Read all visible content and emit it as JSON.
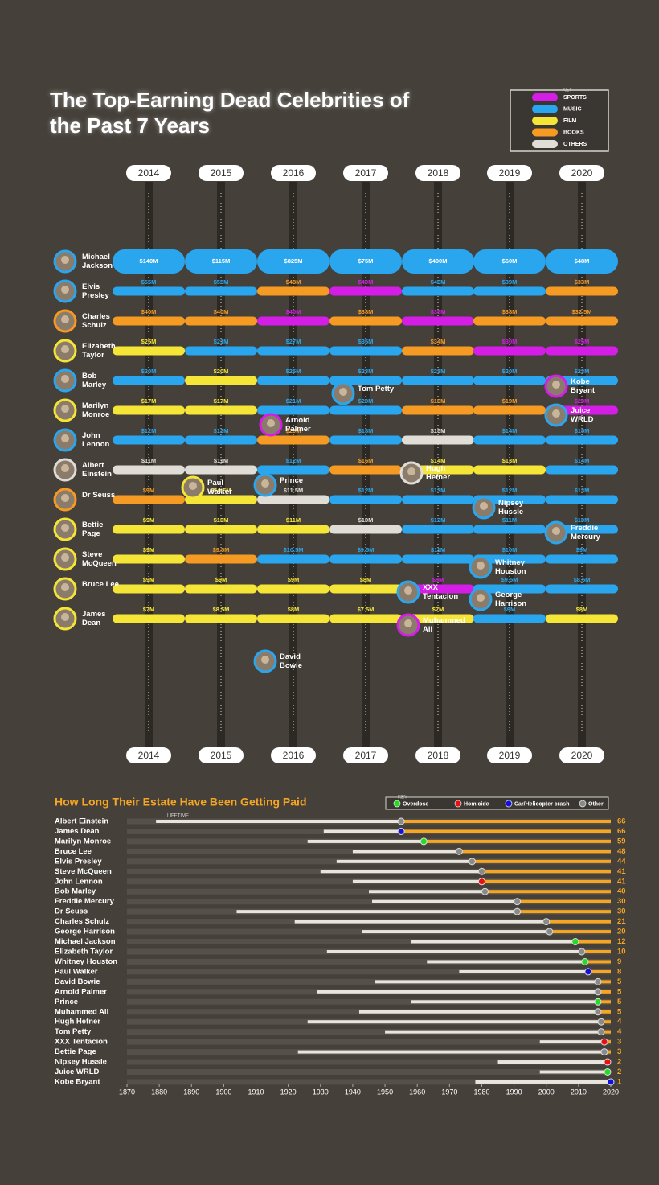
{
  "title": "The Top-Earning Dead Celebrities of the Past 7 Years",
  "chart_data": [
    {
      "type": "bump",
      "key": {
        "title": "KEY",
        "items": [
          {
            "label": "SPORTS",
            "color": "#d41ee6"
          },
          {
            "label": "MUSIC",
            "color": "#2aa6ee"
          },
          {
            "label": "FILM",
            "color": "#f5e536"
          },
          {
            "label": "BOOKS",
            "color": "#f59a23"
          },
          {
            "label": "OTHERS",
            "color": "#e0ddd6"
          }
        ]
      },
      "celebrities": [
        {
          "name": "Michael Jackson",
          "category": "MUSIC"
        },
        {
          "name": "Elvis Presley",
          "category": "MUSIC"
        },
        {
          "name": "Charles Schulz",
          "category": "BOOKS"
        },
        {
          "name": "Elizabeth Taylor",
          "category": "FILM"
        },
        {
          "name": "Bob Marley",
          "category": "MUSIC"
        },
        {
          "name": "Marilyn Monroe",
          "category": "FILM"
        },
        {
          "name": "John Lennon",
          "category": "MUSIC"
        },
        {
          "name": "Albert Einstein",
          "category": "OTHERS"
        },
        {
          "name": "Dr Seuss",
          "category": "BOOKS"
        },
        {
          "name": "Bettie Page",
          "category": "FILM"
        },
        {
          "name": "Steve McQueen",
          "category": "FILM"
        },
        {
          "name": "Bruce Lee",
          "category": "FILM"
        },
        {
          "name": "James Dean",
          "category": "FILM"
        }
      ],
      "callouts": [
        {
          "name": "Paul Walker",
          "category": "FILM"
        },
        {
          "name": "Arnold Palmer",
          "category": "SPORTS"
        },
        {
          "name": "Prince",
          "category": "MUSIC"
        },
        {
          "name": "David Bowie",
          "category": "MUSIC"
        },
        {
          "name": "Tom Petty",
          "category": "MUSIC"
        },
        {
          "name": "Hugh Hefner",
          "category": "OTHERS"
        },
        {
          "name": "XXX Tentacion",
          "category": "MUSIC"
        },
        {
          "name": "Muhammed Ali",
          "category": "SPORTS"
        },
        {
          "name": "Nipsey Hussle",
          "category": "MUSIC"
        },
        {
          "name": "Whitney Houston",
          "category": "MUSIC"
        },
        {
          "name": "George Harrison",
          "category": "MUSIC"
        },
        {
          "name": "Kobe Bryant",
          "category": "SPORTS"
        },
        {
          "name": "Juice WRLD",
          "category": "MUSIC"
        },
        {
          "name": "Freddie Mercury",
          "category": "MUSIC"
        }
      ],
      "years": [
        {
          "year": "2014",
          "entries": [
            {
              "value": 140,
              "label": "$140M",
              "category": "MUSIC"
            },
            {
              "value": 55,
              "label": "$55M",
              "category": "MUSIC"
            },
            {
              "value": 40,
              "label": "$40M",
              "category": "BOOKS"
            },
            {
              "value": 25,
              "label": "$25M",
              "category": "FILM"
            },
            {
              "value": 20,
              "label": "$20M",
              "category": "MUSIC"
            },
            {
              "value": 17,
              "label": "$17M",
              "category": "FILM"
            },
            {
              "value": 12,
              "label": "$12M",
              "category": "MUSIC"
            },
            {
              "value": 11,
              "label": "$11M",
              "category": "OTHERS"
            },
            {
              "value": 9,
              "label": "$9M",
              "category": "BOOKS"
            },
            {
              "value": 9,
              "label": "$9M",
              "category": "FILM"
            },
            {
              "value": 9,
              "label": "$9M",
              "category": "FILM"
            },
            {
              "value": 9,
              "label": "$9M",
              "category": "FILM"
            },
            {
              "value": 7,
              "label": "$7M",
              "category": "FILM"
            }
          ]
        },
        {
          "year": "2015",
          "entries": [
            {
              "value": 115,
              "label": "$115M",
              "category": "MUSIC"
            },
            {
              "value": 55,
              "label": "$55M",
              "category": "MUSIC"
            },
            {
              "value": 40,
              "label": "$40M",
              "category": "BOOKS"
            },
            {
              "value": 21,
              "label": "$21M",
              "category": "MUSIC"
            },
            {
              "value": 20,
              "label": "$20M",
              "category": "FILM"
            },
            {
              "value": 17,
              "label": "$17M",
              "category": "FILM"
            },
            {
              "value": 12,
              "label": "$12M",
              "category": "MUSIC"
            },
            {
              "value": 11,
              "label": "$11M",
              "category": "OTHERS"
            },
            {
              "value": 10.5,
              "label": "$10.5M",
              "category": "FILM"
            },
            {
              "value": 10,
              "label": "$10M",
              "category": "FILM"
            },
            {
              "value": 9.5,
              "label": "$9.5M",
              "category": "BOOKS"
            },
            {
              "value": 9,
              "label": "$9M",
              "category": "FILM"
            },
            {
              "value": 8.5,
              "label": "$8.5M",
              "category": "FILM"
            }
          ]
        },
        {
          "year": "2016",
          "entries": [
            {
              "value": 825,
              "label": "$825M",
              "category": "MUSIC"
            },
            {
              "value": 48,
              "label": "$48M",
              "category": "BOOKS"
            },
            {
              "value": 40,
              "label": "$40M",
              "category": "SPORTS"
            },
            {
              "value": 27,
              "label": "$27M",
              "category": "MUSIC"
            },
            {
              "value": 25,
              "label": "$25M",
              "category": "MUSIC"
            },
            {
              "value": 21,
              "label": "$21M",
              "category": "MUSIC"
            },
            {
              "value": 20,
              "label": "$20M",
              "category": "BOOKS"
            },
            {
              "value": 12,
              "label": "$12M",
              "category": "MUSIC"
            },
            {
              "value": 11.5,
              "label": "$11.5M",
              "category": "OTHERS"
            },
            {
              "value": 11,
              "label": "$11M",
              "category": "FILM"
            },
            {
              "value": 10.5,
              "label": "$10.5M",
              "category": "MUSIC"
            },
            {
              "value": 9,
              "label": "$9M",
              "category": "FILM"
            },
            {
              "value": 8,
              "label": "$8M",
              "category": "FILM"
            }
          ]
        },
        {
          "year": "2017",
          "entries": [
            {
              "value": 75,
              "label": "$75M",
              "category": "MUSIC"
            },
            {
              "value": 40,
              "label": "$40M",
              "category": "SPORTS"
            },
            {
              "value": 38,
              "label": "$38M",
              "category": "BOOKS"
            },
            {
              "value": 35,
              "label": "$35M",
              "category": "MUSIC"
            },
            {
              "value": 23,
              "label": "$23M",
              "category": "MUSIC"
            },
            {
              "value": 20,
              "label": "$20M",
              "category": "MUSIC"
            },
            {
              "value": 18,
              "label": "$18M",
              "category": "MUSIC"
            },
            {
              "value": 16,
              "label": "$16M",
              "category": "BOOKS"
            },
            {
              "value": 12,
              "label": "$12M",
              "category": "MUSIC"
            },
            {
              "value": 10,
              "label": "$10M",
              "category": "OTHERS"
            },
            {
              "value": 9.5,
              "label": "$9.5M",
              "category": "MUSIC"
            },
            {
              "value": 8,
              "label": "$8M",
              "category": "FILM"
            },
            {
              "value": 7.5,
              "label": "$7.5M",
              "category": "FILM"
            }
          ]
        },
        {
          "year": "2018",
          "entries": [
            {
              "value": 400,
              "label": "$400M",
              "category": "MUSIC"
            },
            {
              "value": 40,
              "label": "$40M",
              "category": "MUSIC"
            },
            {
              "value": 35,
              "label": "$35M",
              "category": "SPORTS"
            },
            {
              "value": 34,
              "label": "$34M",
              "category": "BOOKS"
            },
            {
              "value": 23,
              "label": "$23M",
              "category": "MUSIC"
            },
            {
              "value": 16,
              "label": "$16M",
              "category": "BOOKS"
            },
            {
              "value": 15,
              "label": "$15M",
              "category": "OTHERS"
            },
            {
              "value": 14,
              "label": "$14M",
              "category": "FILM"
            },
            {
              "value": 13,
              "label": "$13M",
              "category": "MUSIC"
            },
            {
              "value": 12,
              "label": "$12M",
              "category": "MUSIC"
            },
            {
              "value": 11,
              "label": "$11M",
              "category": "MUSIC"
            },
            {
              "value": 8,
              "label": "$8M",
              "category": "SPORTS"
            },
            {
              "value": 7,
              "label": "$7M",
              "category": "FILM"
            }
          ]
        },
        {
          "year": "2019",
          "entries": [
            {
              "value": 60,
              "label": "$60M",
              "category": "MUSIC"
            },
            {
              "value": 39,
              "label": "$39M",
              "category": "MUSIC"
            },
            {
              "value": 38,
              "label": "$38M",
              "category": "BOOKS"
            },
            {
              "value": 30,
              "label": "$30M",
              "category": "SPORTS"
            },
            {
              "value": 20,
              "label": "$20M",
              "category": "MUSIC"
            },
            {
              "value": 19,
              "label": "$19M",
              "category": "BOOKS"
            },
            {
              "value": 14,
              "label": "$14M",
              "category": "MUSIC"
            },
            {
              "value": 13,
              "label": "$13M",
              "category": "FILM"
            },
            {
              "value": 12,
              "label": "$12M",
              "category": "MUSIC"
            },
            {
              "value": 11,
              "label": "$11M",
              "category": "MUSIC"
            },
            {
              "value": 10,
              "label": "$10M",
              "category": "MUSIC"
            },
            {
              "value": 9.5,
              "label": "$9.5M",
              "category": "MUSIC"
            },
            {
              "value": 9,
              "label": "$9M",
              "category": "MUSIC"
            }
          ]
        },
        {
          "year": "2020",
          "entries": [
            {
              "value": 48,
              "label": "$48M",
              "category": "MUSIC"
            },
            {
              "value": 33,
              "label": "$33M",
              "category": "BOOKS"
            },
            {
              "value": 32.5,
              "label": "$32.5M",
              "category": "BOOKS"
            },
            {
              "value": 25,
              "label": "$25M",
              "category": "SPORTS"
            },
            {
              "value": 23,
              "label": "$23M",
              "category": "MUSIC"
            },
            {
              "value": 20,
              "label": "$20M",
              "category": "SPORTS"
            },
            {
              "value": 15,
              "label": "$15M",
              "category": "MUSIC"
            },
            {
              "value": 14,
              "label": "$14M",
              "category": "MUSIC"
            },
            {
              "value": 13,
              "label": "$13M",
              "category": "MUSIC"
            },
            {
              "value": 10,
              "label": "$10M",
              "category": "MUSIC"
            },
            {
              "value": 9,
              "label": "$9M",
              "category": "MUSIC"
            },
            {
              "value": 8.5,
              "label": "$8.5M",
              "category": "MUSIC"
            },
            {
              "value": 8,
              "label": "$8M",
              "category": "FILM"
            }
          ]
        }
      ]
    },
    {
      "type": "range",
      "title": "How Long Their Estate Have Been Getting Paid",
      "lifetime_label": "LIFETIME",
      "key": {
        "title": "KEY",
        "items": [
          {
            "label": "Overdose",
            "color": "#22dd22"
          },
          {
            "label": "Homicide",
            "color": "#e81010"
          },
          {
            "label": "Car/Helicopter crash",
            "color": "#1010e0"
          },
          {
            "label": "Other",
            "color": "#8a8a8a"
          }
        ]
      },
      "xlim": [
        1870,
        2020
      ],
      "xticks": [
        1870,
        1880,
        1890,
        1900,
        1910,
        1920,
        1930,
        1940,
        1950,
        1960,
        1970,
        1980,
        1990,
        2000,
        2010,
        2020
      ],
      "rows": [
        {
          "name": "Albert Einstein",
          "born": 1879,
          "died": 1955,
          "cause": "Other",
          "years": 66
        },
        {
          "name": "James Dean",
          "born": 1931,
          "died": 1955,
          "cause": "Car/Helicopter crash",
          "years": 66
        },
        {
          "name": "Marilyn Monroe",
          "born": 1926,
          "died": 1962,
          "cause": "Overdose",
          "years": 59
        },
        {
          "name": "Bruce Lee",
          "born": 1940,
          "died": 1973,
          "cause": "Other",
          "years": 48
        },
        {
          "name": "Elvis Presley",
          "born": 1935,
          "died": 1977,
          "cause": "Other",
          "years": 44
        },
        {
          "name": "Steve McQueen",
          "born": 1930,
          "died": 1980,
          "cause": "Other",
          "years": 41
        },
        {
          "name": "John Lennon",
          "born": 1940,
          "died": 1980,
          "cause": "Homicide",
          "years": 41
        },
        {
          "name": "Bob Marley",
          "born": 1945,
          "died": 1981,
          "cause": "Other",
          "years": 40
        },
        {
          "name": "Freddie Mercury",
          "born": 1946,
          "died": 1991,
          "cause": "Other",
          "years": 30
        },
        {
          "name": "Dr Seuss",
          "born": 1904,
          "died": 1991,
          "cause": "Other",
          "years": 30
        },
        {
          "name": "Charles Schulz",
          "born": 1922,
          "died": 2000,
          "cause": "Other",
          "years": 21
        },
        {
          "name": "George Harrison",
          "born": 1943,
          "died": 2001,
          "cause": "Other",
          "years": 20
        },
        {
          "name": "Michael Jackson",
          "born": 1958,
          "died": 2009,
          "cause": "Overdose",
          "years": 12
        },
        {
          "name": "Elizabeth Taylor",
          "born": 1932,
          "died": 2011,
          "cause": "Other",
          "years": 10
        },
        {
          "name": "Whitney Houston",
          "born": 1963,
          "died": 2012,
          "cause": "Overdose",
          "years": 9
        },
        {
          "name": "Paul Walker",
          "born": 1973,
          "died": 2013,
          "cause": "Car/Helicopter crash",
          "years": 8
        },
        {
          "name": "David Bowie",
          "born": 1947,
          "died": 2016,
          "cause": "Other",
          "years": 5
        },
        {
          "name": "Arnold Palmer",
          "born": 1929,
          "died": 2016,
          "cause": "Other",
          "years": 5
        },
        {
          "name": "Prince",
          "born": 1958,
          "died": 2016,
          "cause": "Overdose",
          "years": 5
        },
        {
          "name": "Muhammed Ali",
          "born": 1942,
          "died": 2016,
          "cause": "Other",
          "years": 5
        },
        {
          "name": "Hugh Hefner",
          "born": 1926,
          "died": 2017,
          "cause": "Other",
          "years": 4
        },
        {
          "name": "Tom Petty",
          "born": 1950,
          "died": 2017,
          "cause": "Other",
          "years": 4
        },
        {
          "name": "XXX Tentacion",
          "born": 1998,
          "died": 2018,
          "cause": "Homicide",
          "years": 3
        },
        {
          "name": "Bettie Page",
          "born": 1923,
          "died": 2018,
          "cause": "Other",
          "years": 3
        },
        {
          "name": "Nipsey Hussle",
          "born": 1985,
          "died": 2019,
          "cause": "Homicide",
          "years": 2
        },
        {
          "name": "Juice WRLD",
          "born": 1998,
          "died": 2019,
          "cause": "Overdose",
          "years": 2
        },
        {
          "name": "Kobe Bryant",
          "born": 1978,
          "died": 2020,
          "cause": "Car/Helicopter crash",
          "years": 1
        }
      ]
    }
  ]
}
